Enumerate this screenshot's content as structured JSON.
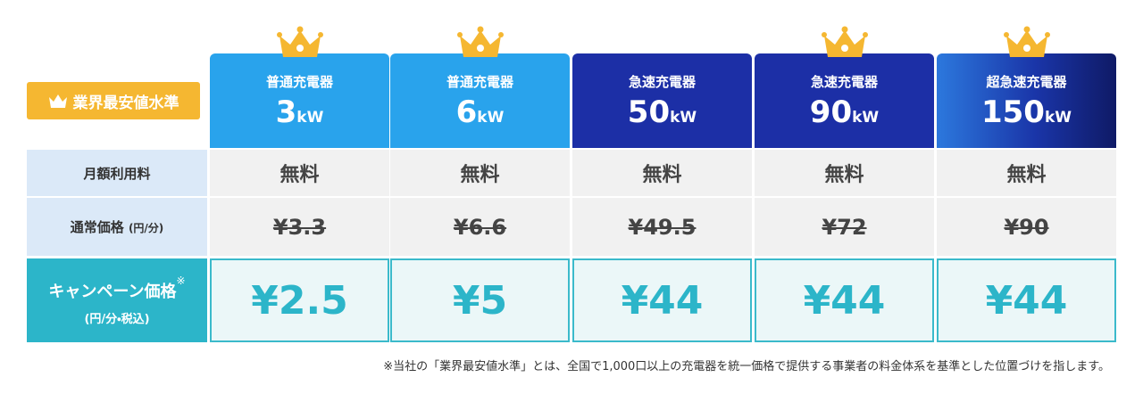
{
  "badge": "業界最安値水準",
  "columns": [
    {
      "type": "普通充電器",
      "power": "3",
      "unit": "kW",
      "crown": true
    },
    {
      "type": "普通充電器",
      "power": "6",
      "unit": "kW",
      "crown": true
    },
    {
      "type": "急速充電器",
      "power": "50",
      "unit": "kW",
      "crown": false
    },
    {
      "type": "急速充電器",
      "power": "90",
      "unit": "kW",
      "crown": true
    },
    {
      "type": "超急速充電器",
      "power": "150",
      "unit": "kW",
      "crown": true
    }
  ],
  "rows": [
    {
      "label": "月額利用料",
      "values": [
        "無料",
        "無料",
        "無料",
        "無料",
        "無料"
      ]
    },
    {
      "label": "通常価格",
      "unit": "(円/分)",
      "values": [
        "¥3.3",
        "¥6.6",
        "¥49.5",
        "¥72",
        "¥90"
      ]
    },
    {
      "label": "キャンペーン価格",
      "mark": "※",
      "unit": "(円/分・税込)",
      "values": [
        "¥2.5",
        "¥5",
        "¥44",
        "¥44",
        "¥44"
      ]
    }
  ],
  "footnote": "※当社の「業界最安値水準」とは、全国で1,000口以上の充電器を統一価格で提供する事業者の料金体系を基準とした位置づけを指します。"
}
